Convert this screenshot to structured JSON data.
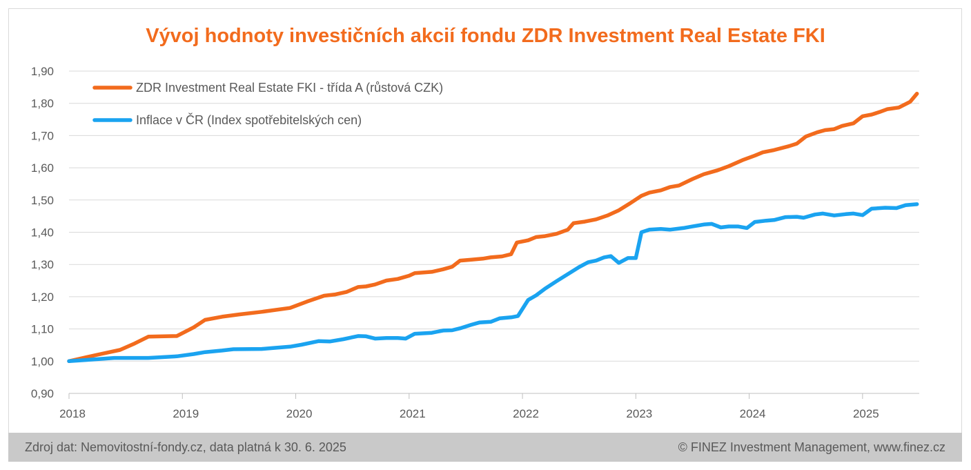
{
  "chart_data": {
    "type": "line",
    "title": "Vývoj hodnoty investičních akcií fondu ZDR Investment Real Estate FKI",
    "ylim": [
      0.9,
      1.9
    ],
    "yticks": [
      "0,90",
      "1,00",
      "1,10",
      "1,20",
      "1,30",
      "1,40",
      "1,50",
      "1,60",
      "1,70",
      "1,80",
      "1,90"
    ],
    "xlim": [
      2018.0,
      2025.5
    ],
    "xticks": [
      "2018",
      "2019",
      "2020",
      "2021",
      "2022",
      "2023",
      "2024",
      "2025"
    ],
    "grid": true,
    "legend_position": "top-left",
    "series": [
      {
        "name": "ZDR Investment Real Estate FKI - třída A (růstová CZK)",
        "color": "#f26b1d",
        "points": [
          [
            2018.0,
            1.0
          ],
          [
            2018.25,
            1.02
          ],
          [
            2018.45,
            1.035
          ],
          [
            2018.58,
            1.055
          ],
          [
            2018.7,
            1.076
          ],
          [
            2018.95,
            1.078
          ],
          [
            2019.1,
            1.105
          ],
          [
            2019.2,
            1.128
          ],
          [
            2019.35,
            1.138
          ],
          [
            2019.5,
            1.145
          ],
          [
            2019.7,
            1.153
          ],
          [
            2019.95,
            1.165
          ],
          [
            2020.1,
            1.185
          ],
          [
            2020.25,
            1.203
          ],
          [
            2020.35,
            1.207
          ],
          [
            2020.45,
            1.215
          ],
          [
            2020.55,
            1.23
          ],
          [
            2020.62,
            1.232
          ],
          [
            2020.7,
            1.238
          ],
          [
            2020.8,
            1.25
          ],
          [
            2020.9,
            1.255
          ],
          [
            2021.0,
            1.265
          ],
          [
            2021.05,
            1.273
          ],
          [
            2021.2,
            1.277
          ],
          [
            2021.3,
            1.285
          ],
          [
            2021.38,
            1.293
          ],
          [
            2021.45,
            1.312
          ],
          [
            2021.55,
            1.315
          ],
          [
            2021.65,
            1.318
          ],
          [
            2021.72,
            1.322
          ],
          [
            2021.82,
            1.325
          ],
          [
            2021.9,
            1.332
          ],
          [
            2021.95,
            1.368
          ],
          [
            2022.05,
            1.375
          ],
          [
            2022.12,
            1.385
          ],
          [
            2022.2,
            1.388
          ],
          [
            2022.3,
            1.395
          ],
          [
            2022.4,
            1.408
          ],
          [
            2022.45,
            1.428
          ],
          [
            2022.55,
            1.433
          ],
          [
            2022.65,
            1.44
          ],
          [
            2022.75,
            1.452
          ],
          [
            2022.85,
            1.468
          ],
          [
            2022.95,
            1.49
          ],
          [
            2023.05,
            1.513
          ],
          [
            2023.12,
            1.523
          ],
          [
            2023.22,
            1.53
          ],
          [
            2023.3,
            1.54
          ],
          [
            2023.38,
            1.545
          ],
          [
            2023.5,
            1.565
          ],
          [
            2023.6,
            1.58
          ],
          [
            2023.72,
            1.592
          ],
          [
            2023.82,
            1.605
          ],
          [
            2023.95,
            1.625
          ],
          [
            2024.05,
            1.638
          ],
          [
            2024.12,
            1.648
          ],
          [
            2024.22,
            1.655
          ],
          [
            2024.35,
            1.667
          ],
          [
            2024.42,
            1.675
          ],
          [
            2024.5,
            1.697
          ],
          [
            2024.6,
            1.71
          ],
          [
            2024.67,
            1.717
          ],
          [
            2024.75,
            1.72
          ],
          [
            2024.82,
            1.73
          ],
          [
            2024.92,
            1.738
          ],
          [
            2025.0,
            1.76
          ],
          [
            2025.08,
            1.765
          ],
          [
            2025.15,
            1.773
          ],
          [
            2025.22,
            1.782
          ],
          [
            2025.32,
            1.787
          ],
          [
            2025.42,
            1.805
          ],
          [
            2025.48,
            1.83
          ]
        ]
      },
      {
        "name": "Inflace v ČR (Index spotřebitelských cen)",
        "color": "#1aa3f0",
        "points": [
          [
            2018.0,
            1.0
          ],
          [
            2018.2,
            1.005
          ],
          [
            2018.4,
            1.01
          ],
          [
            2018.7,
            1.01
          ],
          [
            2018.95,
            1.015
          ],
          [
            2019.1,
            1.022
          ],
          [
            2019.2,
            1.028
          ],
          [
            2019.35,
            1.033
          ],
          [
            2019.45,
            1.037
          ],
          [
            2019.7,
            1.038
          ],
          [
            2019.8,
            1.041
          ],
          [
            2019.95,
            1.045
          ],
          [
            2020.05,
            1.051
          ],
          [
            2020.2,
            1.062
          ],
          [
            2020.3,
            1.061
          ],
          [
            2020.42,
            1.068
          ],
          [
            2020.55,
            1.078
          ],
          [
            2020.62,
            1.077
          ],
          [
            2020.7,
            1.07
          ],
          [
            2020.8,
            1.072
          ],
          [
            2020.9,
            1.072
          ],
          [
            2020.97,
            1.07
          ],
          [
            2021.05,
            1.085
          ],
          [
            2021.2,
            1.088
          ],
          [
            2021.3,
            1.095
          ],
          [
            2021.38,
            1.096
          ],
          [
            2021.45,
            1.102
          ],
          [
            2021.55,
            1.113
          ],
          [
            2021.62,
            1.12
          ],
          [
            2021.72,
            1.122
          ],
          [
            2021.8,
            1.133
          ],
          [
            2021.9,
            1.136
          ],
          [
            2021.96,
            1.14
          ],
          [
            2022.05,
            1.19
          ],
          [
            2022.12,
            1.204
          ],
          [
            2022.2,
            1.225
          ],
          [
            2022.3,
            1.248
          ],
          [
            2022.4,
            1.27
          ],
          [
            2022.5,
            1.292
          ],
          [
            2022.58,
            1.307
          ],
          [
            2022.65,
            1.312
          ],
          [
            2022.72,
            1.322
          ],
          [
            2022.78,
            1.326
          ],
          [
            2022.85,
            1.305
          ],
          [
            2022.93,
            1.32
          ],
          [
            2023.0,
            1.32
          ],
          [
            2023.05,
            1.4
          ],
          [
            2023.12,
            1.408
          ],
          [
            2023.22,
            1.41
          ],
          [
            2023.3,
            1.408
          ],
          [
            2023.42,
            1.413
          ],
          [
            2023.5,
            1.418
          ],
          [
            2023.6,
            1.424
          ],
          [
            2023.67,
            1.426
          ],
          [
            2023.75,
            1.415
          ],
          [
            2023.82,
            1.418
          ],
          [
            2023.9,
            1.418
          ],
          [
            2023.98,
            1.413
          ],
          [
            2024.05,
            1.432
          ],
          [
            2024.15,
            1.436
          ],
          [
            2024.22,
            1.438
          ],
          [
            2024.32,
            1.447
          ],
          [
            2024.42,
            1.448
          ],
          [
            2024.48,
            1.445
          ],
          [
            2024.58,
            1.455
          ],
          [
            2024.65,
            1.458
          ],
          [
            2024.75,
            1.452
          ],
          [
            2024.85,
            1.456
          ],
          [
            2024.92,
            1.458
          ],
          [
            2025.0,
            1.453
          ],
          [
            2025.08,
            1.473
          ],
          [
            2025.2,
            1.476
          ],
          [
            2025.3,
            1.475
          ],
          [
            2025.38,
            1.484
          ],
          [
            2025.48,
            1.487
          ]
        ]
      }
    ]
  },
  "footer": {
    "source": "Zdroj dat: Nemovitostní-fondy.cz, data platná k 30. 6. 2025",
    "copyright": "© FINEZ Investment Management, www.finez.cz"
  }
}
